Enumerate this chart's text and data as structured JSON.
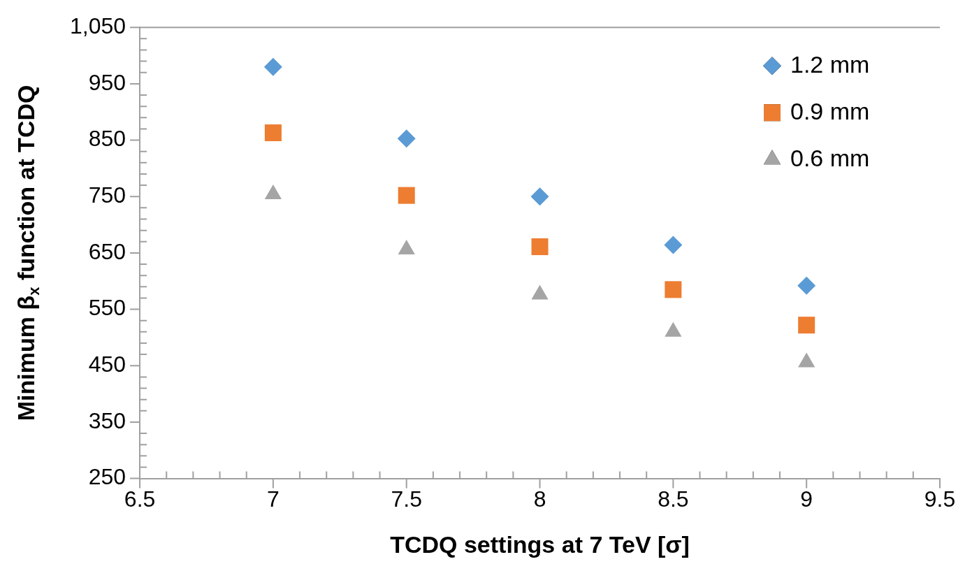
{
  "chart_data": {
    "type": "scatter",
    "xlabel": "TCDQ settings at 7 TeV [σ]",
    "ylabel": "Minimum β$_{x}$ function at TCDQ",
    "x": [
      7,
      7.5,
      8,
      8.5,
      9
    ],
    "series": [
      {
        "name": "1.2 mm",
        "color": "#5b9bd5",
        "marker": "diamond",
        "values": [
          980,
          853,
          750,
          664,
          592
        ]
      },
      {
        "name": "0.9 mm",
        "color": "#ed7d31",
        "marker": "square",
        "values": [
          863,
          752,
          661,
          585,
          522
        ]
      },
      {
        "name": "0.6 mm",
        "color": "#a5a5a5",
        "marker": "triangle",
        "values": [
          754,
          656,
          576,
          510,
          456
        ]
      }
    ],
    "xlim": [
      6.5,
      9.5
    ],
    "xticks": [
      6.5,
      {
        "value": 6.6,
        "label": null
      },
      {
        "value": 6.7,
        "label": null
      },
      {
        "value": 6.8,
        "label": null
      },
      {
        "value": 6.9,
        "label": null
      },
      7,
      {
        "value": 7.1,
        "label": null
      },
      {
        "value": 7.2,
        "label": null
      },
      {
        "value": 7.3,
        "label": null
      },
      {
        "value": 7.4,
        "label": null
      },
      7.5,
      {
        "value": 7.6,
        "label": null
      },
      {
        "value": 7.7,
        "label": null
      },
      {
        "value": 7.8,
        "label": null
      },
      {
        "value": 7.9,
        "label": null
      },
      8,
      {
        "value": 8.1,
        "label": null
      },
      {
        "value": 8.2,
        "label": null
      },
      {
        "value": 8.3,
        "label": null
      },
      {
        "value": 8.4,
        "label": null
      },
      8.5,
      {
        "value": 8.6,
        "label": null
      },
      {
        "value": 8.7,
        "label": null
      },
      {
        "value": 8.8,
        "label": null
      },
      {
        "value": 8.9,
        "label": null
      },
      9,
      {
        "value": 9.1,
        "label": null
      },
      {
        "value": 9.2,
        "label": null
      },
      {
        "value": 9.3,
        "label": null
      },
      {
        "value": 9.4,
        "label": null
      },
      9.5
    ],
    "ylim": [
      250,
      1050
    ],
    "yticks": [
      250,
      {
        "value": 270,
        "label": null
      },
      {
        "value": 290,
        "label": null
      },
      {
        "value": 310,
        "label": null
      },
      {
        "value": 330,
        "label": null
      },
      350,
      {
        "value": 370,
        "label": null
      },
      {
        "value": 390,
        "label": null
      },
      {
        "value": 410,
        "label": null
      },
      {
        "value": 430,
        "label": null
      },
      450,
      {
        "value": 470,
        "label": null
      },
      {
        "value": 490,
        "label": null
      },
      {
        "value": 510,
        "label": null
      },
      {
        "value": 530,
        "label": null
      },
      550,
      {
        "value": 570,
        "label": null
      },
      {
        "value": 590,
        "label": null
      },
      {
        "value": 610,
        "label": null
      },
      {
        "value": 630,
        "label": null
      },
      650,
      {
        "value": 670,
        "label": null
      },
      {
        "value": 690,
        "label": null
      },
      {
        "value": 710,
        "label": null
      },
      {
        "value": 730,
        "label": null
      },
      750,
      {
        "value": 770,
        "label": null
      },
      {
        "value": 790,
        "label": null
      },
      {
        "value": 810,
        "label": null
      },
      {
        "value": 830,
        "label": null
      },
      850,
      {
        "value": 870,
        "label": null
      },
      {
        "value": 890,
        "label": null
      },
      {
        "value": 910,
        "label": null
      },
      {
        "value": 930,
        "label": null
      },
      950,
      {
        "value": 970,
        "label": null
      },
      {
        "value": 990,
        "label": null
      },
      {
        "value": 1010,
        "label": null
      },
      {
        "value": 1030,
        "label": null
      },
      {
        "value": 1050,
        "label": "1,050"
      }
    ],
    "grid": false,
    "legend": "top right"
  }
}
